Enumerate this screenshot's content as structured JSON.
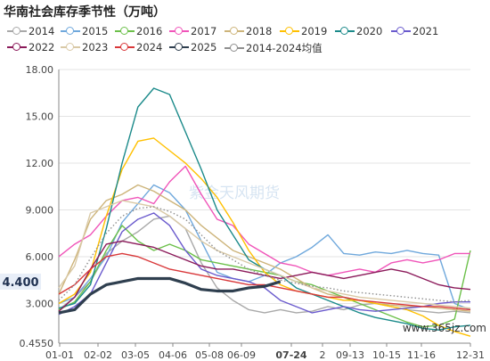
{
  "chart_data": {
    "type": "line",
    "title": "华南社会库存季节性（万吨）",
    "watermark": "紫金天风期货",
    "corner_mark": "www.365jz.com",
    "x_ticks": [
      "01-01",
      "02-02",
      "03-05",
      "04-06",
      "05-08",
      "06-09",
      "07-24",
      "2",
      "09-13",
      "10-15",
      "11-16",
      "12-31"
    ],
    "y_ticks": [
      "18.00",
      "15.00",
      "12.00",
      "9.000",
      "6.000",
      "3.000",
      "0.4550"
    ],
    "ylim": [
      0.455,
      18.0
    ],
    "highlight_label": "4.400",
    "highlight_x_label": "07-24",
    "x_weeks": [
      0,
      2,
      4,
      6,
      8,
      10,
      12,
      14,
      16,
      18,
      20,
      22,
      24,
      26,
      28,
      30,
      32,
      34,
      36,
      38,
      40,
      42,
      44,
      46,
      48,
      50,
      52
    ],
    "series": [
      {
        "name": "2014",
        "color": "#a9a9a9",
        "values": [
          2.6,
          3.4,
          4.4,
          6.2,
          7.0,
          7.6,
          8.4,
          8.6,
          7.8,
          5.6,
          4.0,
          3.2,
          2.6,
          2.4,
          2.6,
          2.4,
          2.5,
          2.8,
          2.6,
          2.9,
          3.0,
          2.8,
          2.6,
          2.5,
          2.4,
          2.5,
          2.4
        ]
      },
      {
        "name": "2015",
        "color": "#6fa8dc",
        "values": [
          3.0,
          3.4,
          4.6,
          6.0,
          8.2,
          9.4,
          10.6,
          10.1,
          9.0,
          7.0,
          5.0,
          4.6,
          4.4,
          4.8,
          5.6,
          6.0,
          6.6,
          7.4,
          6.2,
          6.1,
          6.3,
          6.2,
          6.4,
          6.2,
          6.1,
          3.0,
          2.6
        ]
      },
      {
        "name": "2016",
        "color": "#6cc04a",
        "values": [
          2.6,
          3.1,
          4.4,
          6.4,
          8.0,
          7.0,
          6.4,
          6.8,
          6.4,
          5.8,
          5.6,
          5.4,
          5.2,
          5.0,
          4.8,
          4.4,
          4.2,
          3.8,
          3.4,
          3.0,
          2.6,
          2.2,
          1.8,
          1.5,
          1.6,
          2.0,
          6.4
        ]
      },
      {
        "name": "2017",
        "color": "#f055b9",
        "values": [
          6.0,
          6.8,
          7.4,
          8.6,
          9.6,
          9.8,
          9.4,
          10.8,
          11.8,
          10.0,
          8.4,
          8.0,
          6.8,
          6.2,
          5.6,
          5.4,
          5.0,
          4.8,
          5.0,
          5.2,
          5.0,
          5.6,
          5.8,
          5.6,
          5.8,
          6.2,
          6.2
        ]
      },
      {
        "name": "2018",
        "color": "#cdb47a",
        "values": [
          3.6,
          5.8,
          8.4,
          9.6,
          10.0,
          10.6,
          10.2,
          9.6,
          9.0,
          8.0,
          7.2,
          6.4,
          6.0,
          5.6,
          5.2,
          4.6,
          4.0,
          3.6,
          3.4,
          3.2,
          3.0,
          2.9,
          2.8,
          2.8,
          2.7,
          2.6,
          2.5
        ]
      },
      {
        "name": "2019",
        "color": "#ffc000",
        "values": [
          3.0,
          3.6,
          5.0,
          8.6,
          11.6,
          13.4,
          13.6,
          12.8,
          12.0,
          11.0,
          9.8,
          8.2,
          6.4,
          5.0,
          4.2,
          3.8,
          3.6,
          3.4,
          3.2,
          3.2,
          3.0,
          2.8,
          2.6,
          2.2,
          1.6,
          1.2,
          0.9
        ]
      },
      {
        "name": "2020",
        "color": "#1b8a8a",
        "values": [
          2.7,
          3.0,
          4.2,
          7.8,
          12.0,
          15.6,
          16.8,
          16.4,
          14.0,
          11.6,
          9.0,
          7.4,
          5.8,
          5.2,
          4.8,
          4.0,
          3.6,
          3.2,
          2.8,
          2.4,
          2.1,
          1.9,
          1.7,
          1.4,
          1.3,
          1.5,
          1.6
        ]
      },
      {
        "name": "2021",
        "color": "#6a5acd",
        "values": [
          2.3,
          2.8,
          3.6,
          5.6,
          7.6,
          8.4,
          8.8,
          8.0,
          6.4,
          5.2,
          4.8,
          4.6,
          4.4,
          4.0,
          3.2,
          2.8,
          2.4,
          2.6,
          2.8,
          2.6,
          2.5,
          2.6,
          2.7,
          2.8,
          3.0,
          3.1,
          3.1
        ]
      },
      {
        "name": "2022",
        "color": "#8b1a5a",
        "values": [
          2.5,
          3.4,
          5.2,
          6.8,
          7.0,
          6.8,
          6.6,
          6.2,
          5.8,
          5.4,
          5.2,
          5.2,
          5.0,
          4.8,
          4.6,
          4.8,
          5.0,
          4.8,
          4.6,
          4.8,
          5.0,
          5.2,
          5.0,
          4.6,
          4.2,
          4.0,
          3.9
        ]
      },
      {
        "name": "2023",
        "color": "#d9c9a6",
        "values": [
          4.0,
          5.4,
          8.8,
          9.2,
          9.6,
          9.4,
          9.2,
          8.6,
          7.8,
          7.0,
          6.4,
          6.0,
          5.6,
          5.2,
          4.8,
          4.4,
          4.0,
          3.8,
          3.6,
          3.4,
          3.3,
          3.2,
          3.1,
          3.0,
          2.9,
          2.8,
          2.7
        ]
      },
      {
        "name": "2024",
        "color": "#d9383a",
        "values": [
          3.6,
          4.2,
          5.2,
          6.0,
          6.2,
          6.0,
          5.6,
          5.2,
          5.0,
          4.8,
          4.6,
          4.4,
          4.2,
          4.2,
          4.0,
          3.8,
          3.6,
          3.4,
          3.4,
          3.2,
          3.1,
          3.0,
          2.9,
          2.8,
          2.8,
          2.7,
          2.6
        ]
      },
      {
        "name": "2025",
        "color": "#2f3f4f",
        "values": [
          2.4,
          2.6,
          3.6,
          4.2,
          4.4,
          4.6,
          4.6,
          4.6,
          4.3,
          3.9,
          3.8,
          3.8,
          4.0,
          4.1,
          4.4
        ]
      },
      {
        "name": "2014-2024均值",
        "color": "#8f8f8f",
        "values": [
          3.2,
          4.2,
          5.9,
          7.5,
          8.6,
          9.1,
          9.2,
          8.9,
          8.4,
          7.4,
          6.4,
          5.8,
          5.2,
          4.8,
          4.5,
          4.3,
          4.1,
          4.0,
          3.8,
          3.7,
          3.6,
          3.5,
          3.4,
          3.3,
          3.2,
          3.1,
          3.2
        ]
      }
    ]
  }
}
